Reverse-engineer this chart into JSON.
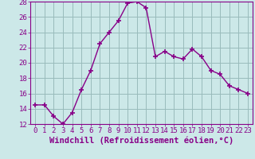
{
  "x": [
    0,
    1,
    2,
    3,
    4,
    5,
    6,
    7,
    8,
    9,
    10,
    11,
    12,
    13,
    14,
    15,
    16,
    17,
    18,
    19,
    20,
    21,
    22,
    23
  ],
  "y": [
    14.5,
    14.5,
    13.0,
    12.0,
    13.5,
    16.5,
    19.0,
    22.5,
    24.0,
    25.5,
    27.8,
    28.0,
    27.2,
    20.8,
    21.5,
    20.8,
    20.5,
    21.8,
    20.8,
    19.0,
    18.5,
    17.0,
    16.5,
    16.0
  ],
  "line_color": "#880088",
  "marker": "+",
  "marker_size": 5,
  "marker_linewidth": 1.2,
  "bg_color": "#cce8e8",
  "grid_color": "#99bbbb",
  "xlabel": "Windchill (Refroidissement éolien,°C)",
  "ylim": [
    12,
    28
  ],
  "xlim_min": -0.5,
  "xlim_max": 23.5,
  "yticks": [
    12,
    14,
    16,
    18,
    20,
    22,
    24,
    26,
    28
  ],
  "xticks": [
    0,
    1,
    2,
    3,
    4,
    5,
    6,
    7,
    8,
    9,
    10,
    11,
    12,
    13,
    14,
    15,
    16,
    17,
    18,
    19,
    20,
    21,
    22,
    23
  ],
  "tick_color": "#880088",
  "xlabel_fontsize": 7.5,
  "tick_fontsize": 6.5,
  "linewidth": 1.0
}
